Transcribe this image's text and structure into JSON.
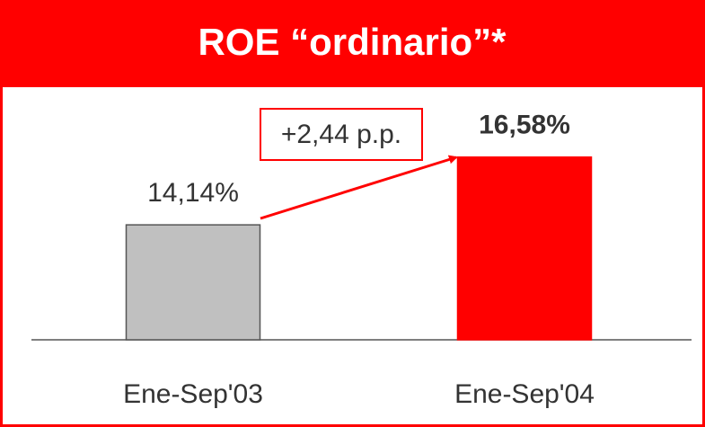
{
  "chart_data": {
    "type": "bar",
    "title": "ROE “ordinario”*",
    "categories": [
      "Ene-Sep'03",
      "Ene-Sep'04"
    ],
    "values": [
      14.14,
      16.58
    ],
    "value_labels": [
      "14,14%",
      "16,58%"
    ],
    "colors": [
      "#c0c0c0",
      "#ff0000"
    ],
    "ylim": [
      10,
      19
    ],
    "annotation": "+2,44 p.p."
  }
}
